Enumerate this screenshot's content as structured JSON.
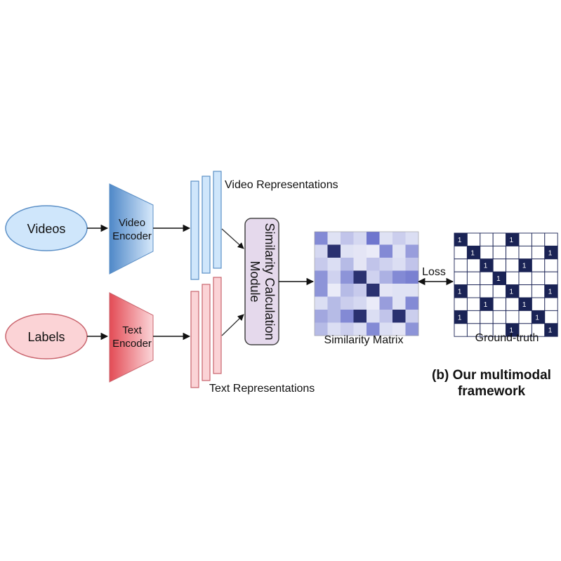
{
  "nodes": {
    "videos": "Videos",
    "labels": "Labels",
    "video_encoder": [
      "Video",
      "Encoder"
    ],
    "text_encoder": [
      "Text",
      "Encoder"
    ],
    "similarity_module": [
      "Similarity Calculation",
      "Module"
    ]
  },
  "labels": {
    "video_representations": "Video Representations",
    "text_representations": "Text Representations",
    "similarity_matrix": "Similarity Matrix",
    "ground_truth": "Ground-truth",
    "loss": "Loss"
  },
  "caption": {
    "line1": "(b) Our multimodal",
    "line2": "framework"
  },
  "colors": {
    "video_fill": "#cfe6fb",
    "video_stroke": "#5b8fc6",
    "text_fill": "#fbd3d6",
    "text_stroke": "#c9646d",
    "module_fill": "#e5d9ec",
    "matrix_dark": "#2a3170",
    "gt_dark": "#1a2355"
  },
  "similarity_matrix": [
    [
      0.55,
      0.1,
      0.25,
      0.15,
      0.65,
      0.1,
      0.2,
      0.12
    ],
    [
      0.15,
      0.95,
      0.1,
      0.08,
      0.05,
      0.55,
      0.1,
      0.45
    ],
    [
      0.22,
      0.12,
      0.3,
      0.08,
      0.25,
      0.18,
      0.12,
      0.25
    ],
    [
      0.5,
      0.18,
      0.5,
      0.95,
      0.18,
      0.35,
      0.55,
      0.6
    ],
    [
      0.5,
      0.05,
      0.3,
      0.22,
      0.95,
      0.08,
      0.1,
      0.1
    ],
    [
      0.12,
      0.3,
      0.2,
      0.15,
      0.05,
      0.45,
      0.1,
      0.55
    ],
    [
      0.4,
      0.3,
      0.55,
      0.95,
      0.12,
      0.25,
      0.95,
      0.2
    ],
    [
      0.3,
      0.12,
      0.2,
      0.12,
      0.55,
      0.12,
      0.08,
      0.5
    ]
  ],
  "ground_truth": [
    [
      1,
      0,
      0,
      0,
      1,
      0,
      0,
      0
    ],
    [
      0,
      1,
      0,
      0,
      0,
      0,
      0,
      1
    ],
    [
      0,
      0,
      1,
      0,
      0,
      1,
      0,
      0
    ],
    [
      0,
      0,
      0,
      1,
      0,
      0,
      0,
      0
    ],
    [
      1,
      0,
      0,
      0,
      1,
      0,
      0,
      1
    ],
    [
      0,
      0,
      1,
      0,
      0,
      1,
      0,
      0
    ],
    [
      1,
      0,
      0,
      0,
      0,
      0,
      1,
      0
    ],
    [
      0,
      0,
      0,
      0,
      1,
      0,
      0,
      1
    ]
  ],
  "ground_truth_value": "1"
}
